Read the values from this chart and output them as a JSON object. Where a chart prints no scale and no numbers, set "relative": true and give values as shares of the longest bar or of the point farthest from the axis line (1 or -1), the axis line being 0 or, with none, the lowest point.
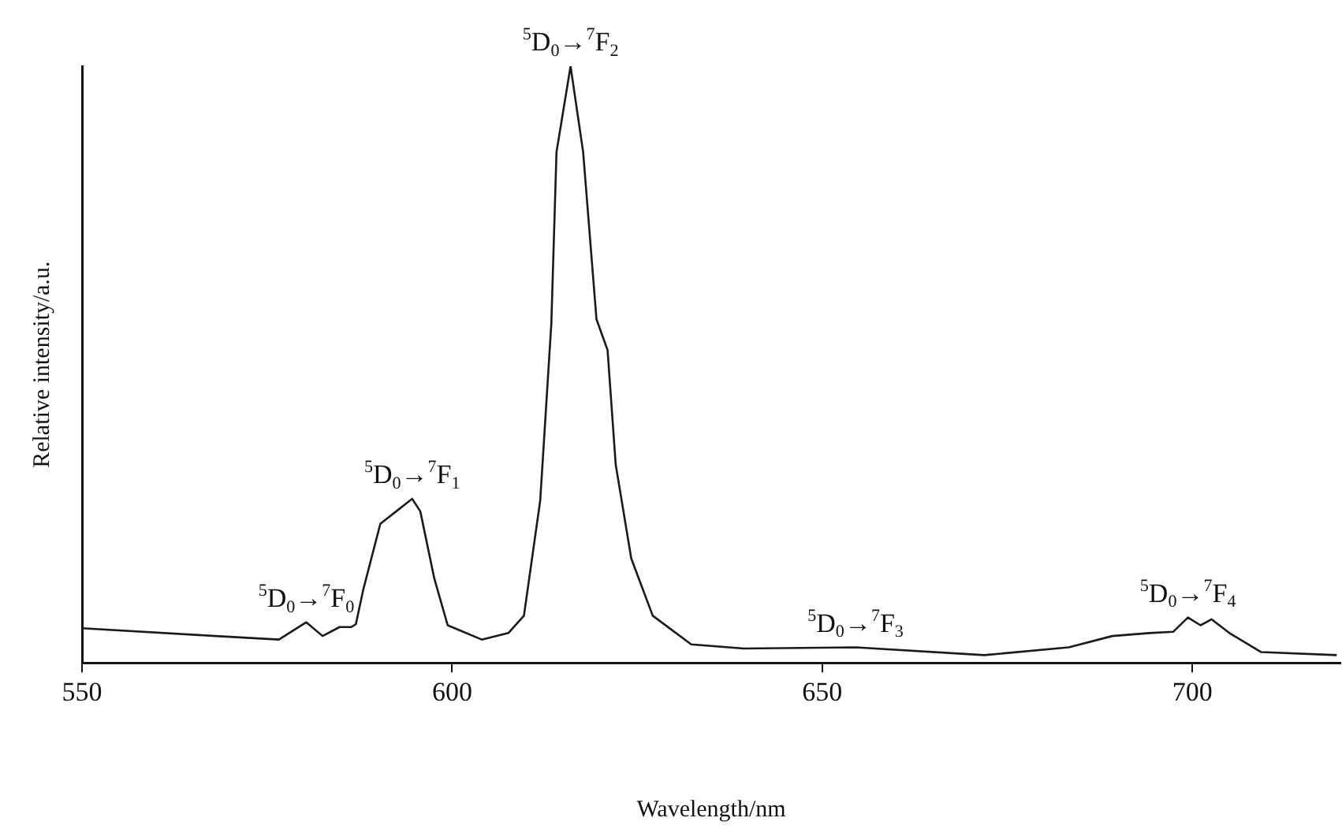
{
  "chart_data": {
    "type": "line",
    "relative": true,
    "xlabel": "Wavelength/nm",
    "ylabel": "Relative intensity/a.u.",
    "xlim": [
      550,
      720
    ],
    "xticks": [
      550,
      600,
      650,
      700
    ],
    "color": "#1a1a1a",
    "marker": "none",
    "line_style": "solid",
    "grid": false,
    "legend": false,
    "x": [
      550,
      568,
      576.6,
      580.3,
      582.5,
      584.8,
      586.4,
      587,
      588,
      590.3,
      594.6,
      595.7,
      597.6,
      599.4,
      604,
      607.6,
      609.7,
      611.9,
      613.4,
      614.1,
      616,
      617.7,
      619.5,
      621,
      622.1,
      624.2,
      627.1,
      632.3,
      639.4,
      654.5,
      671.9,
      683.3,
      689.2,
      694.2,
      697.4,
      699.4,
      701.1,
      702.6,
      705,
      709.3,
      719.5
    ],
    "values": [
      0.058,
      0.045,
      0.039,
      0.068,
      0.045,
      0.06,
      0.06,
      0.065,
      0.123,
      0.233,
      0.275,
      0.254,
      0.141,
      0.063,
      0.039,
      0.05,
      0.079,
      0.272,
      0.568,
      0.856,
      1.0,
      0.856,
      0.576,
      0.524,
      0.332,
      0.175,
      0.079,
      0.031,
      0.024,
      0.026,
      0.013,
      0.026,
      0.045,
      0.05,
      0.052,
      0.076,
      0.063,
      0.073,
      0.05,
      0.018,
      0.013
    ],
    "annotations": [
      {
        "text": "$^{5}$D$_{0}$→$^{7}$F$_{0}$",
        "x": 580.3,
        "y": 0.068
      },
      {
        "text": "$^{5}$D$_{0}$→$^{7}$F$_{1}$",
        "x": 594.6,
        "y": 0.275
      },
      {
        "text": "$^{5}$D$_{0}$→$^{7}$F$_{2}$",
        "x": 616,
        "y": 1.0
      },
      {
        "text": "$^{5}$D$_{0}$→$^{7}$F$_{3}$",
        "x": 654.5,
        "y": 0.026
      },
      {
        "text": "$^{5}$D$_{0}$→$^{7}$F$_{4}$",
        "x": 699.4,
        "y": 0.076
      }
    ]
  }
}
